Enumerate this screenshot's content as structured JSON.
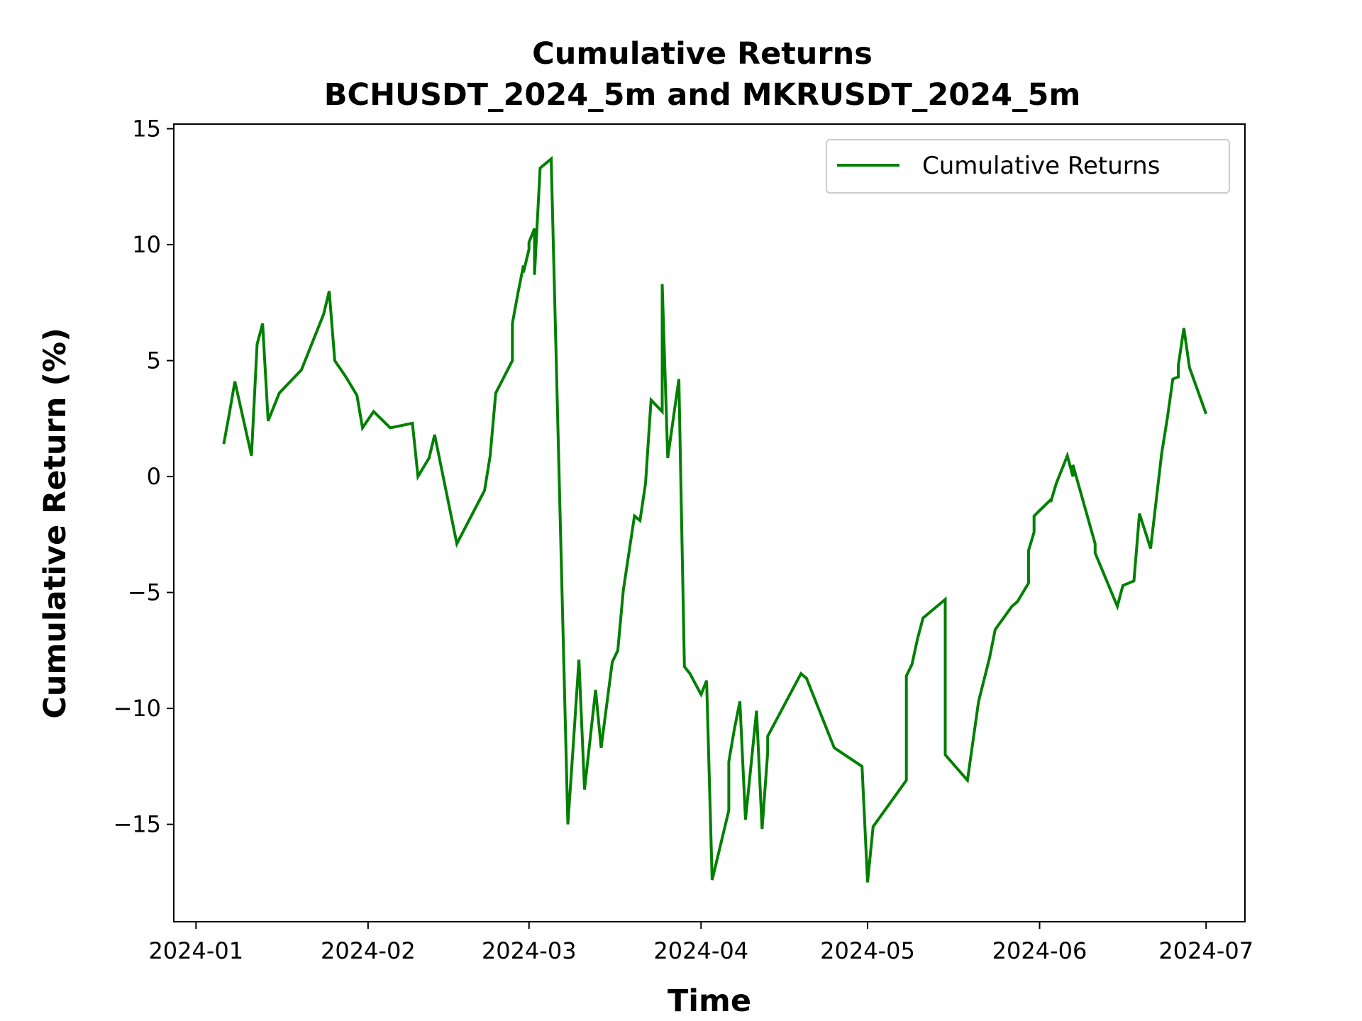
{
  "chart_data": {
    "type": "line",
    "title": "Cumulative Returns",
    "subtitle": "BCHUSDT_2024_5m and MKRUSDT_2024_5m",
    "xlabel": "Time",
    "ylabel": "Cumulative Return (%)",
    "ylim": [
      -19.2,
      15.2
    ],
    "xlim": [
      "2023-12-28",
      "2024-07-08"
    ],
    "x_ticks": [
      "2024-01-01",
      "2024-02-01",
      "2024-03-01",
      "2024-04-01",
      "2024-05-01",
      "2024-06-01",
      "2024-07-01"
    ],
    "x_tick_labels": [
      "2024-01",
      "2024-02",
      "2024-03",
      "2024-04",
      "2024-05",
      "2024-06",
      "2024-07"
    ],
    "y_ticks": [
      15,
      10,
      5,
      0,
      -5,
      -10,
      -15
    ],
    "y_tick_labels": [
      "15",
      "10",
      "5",
      "0",
      "−5",
      "−10",
      "−15"
    ],
    "grid": false,
    "legend_position": "top-right",
    "series": [
      {
        "name": "Cumulative Returns",
        "color": "#008000",
        "x": [
          "2024-01-06",
          "2024-01-07",
          "2024-01-08",
          "2024-01-11",
          "2024-01-12",
          "2024-01-13",
          "2024-01-14",
          "2024-01-16",
          "2024-01-20",
          "2024-01-24",
          "2024-01-25",
          "2024-01-26",
          "2024-01-28",
          "2024-01-30",
          "2024-01-31",
          "2024-02-02",
          "2024-02-05",
          "2024-02-09",
          "2024-02-10",
          "2024-02-12",
          "2024-02-13",
          "2024-02-17",
          "2024-02-22",
          "2024-02-23",
          "2024-02-24",
          "2024-02-27",
          "2024-02-27",
          "2024-02-28",
          "2024-02-29",
          "2024-02-29",
          "2024-03-01",
          "2024-03-01",
          "2024-03-02",
          "2024-03-02",
          "2024-03-03",
          "2024-03-05",
          "2024-03-08",
          "2024-03-09",
          "2024-03-10",
          "2024-03-11",
          "2024-03-13",
          "2024-03-14",
          "2024-03-16",
          "2024-03-17",
          "2024-03-18",
          "2024-03-20",
          "2024-03-21",
          "2024-03-22",
          "2024-03-23",
          "2024-03-25",
          "2024-03-25",
          "2024-03-26",
          "2024-03-28",
          "2024-03-29",
          "2024-03-30",
          "2024-04-01",
          "2024-04-02",
          "2024-04-03",
          "2024-04-06",
          "2024-04-06",
          "2024-04-07",
          "2024-04-08",
          "2024-04-09",
          "2024-04-11",
          "2024-04-12",
          "2024-04-13",
          "2024-04-13",
          "2024-04-19",
          "2024-04-20",
          "2024-04-25",
          "2024-04-30",
          "2024-05-01",
          "2024-05-02",
          "2024-05-08",
          "2024-05-08",
          "2024-05-09",
          "2024-05-10",
          "2024-05-11",
          "2024-05-15",
          "2024-05-15",
          "2024-05-19",
          "2024-05-21",
          "2024-05-23",
          "2024-05-24",
          "2024-05-27",
          "2024-05-28",
          "2024-05-30",
          "2024-05-30",
          "2024-05-31",
          "2024-05-31",
          "2024-06-03",
          "2024-06-03",
          "2024-06-04",
          "2024-06-06",
          "2024-06-07",
          "2024-06-07",
          "2024-06-11",
          "2024-06-11",
          "2024-06-15",
          "2024-06-16",
          "2024-06-18",
          "2024-06-19",
          "2024-06-21",
          "2024-06-23",
          "2024-06-24",
          "2024-06-25",
          "2024-06-26",
          "2024-06-26",
          "2024-06-27",
          "2024-06-28",
          "2024-07-01"
        ],
        "y": [
          1.4,
          2.7,
          4.1,
          0.9,
          5.7,
          6.6,
          2.4,
          3.6,
          4.6,
          7.0,
          8.0,
          5.0,
          4.3,
          3.5,
          2.1,
          2.8,
          2.1,
          2.3,
          0.0,
          0.8,
          1.8,
          -2.9,
          -0.6,
          0.9,
          3.6,
          5.0,
          6.6,
          7.9,
          9.1,
          8.8,
          9.8,
          10.1,
          10.7,
          8.7,
          13.3,
          13.7,
          -15.0,
          -11.5,
          -7.9,
          -13.5,
          -9.2,
          -11.7,
          -8.0,
          -7.5,
          -4.9,
          -1.7,
          -1.9,
          -0.3,
          3.3,
          2.8,
          8.3,
          0.8,
          4.2,
          -8.2,
          -8.5,
          -9.4,
          -8.8,
          -17.4,
          -14.4,
          -12.3,
          -10.9,
          -9.7,
          -14.8,
          -10.1,
          -15.2,
          -11.9,
          -11.2,
          -8.5,
          -8.7,
          -11.7,
          -12.5,
          -17.5,
          -15.1,
          -13.1,
          -8.6,
          -8.1,
          -7.0,
          -6.1,
          -5.3,
          -12.0,
          -13.1,
          -9.7,
          -7.8,
          -6.6,
          -5.6,
          -5.4,
          -4.6,
          -3.2,
          -2.4,
          -1.7,
          -1.0,
          -1.1,
          -0.3,
          0.9,
          0.0,
          0.5,
          -2.9,
          -3.3,
          -5.6,
          -4.7,
          -4.5,
          -1.6,
          -3.1,
          1.0,
          2.5,
          4.2,
          4.3,
          4.8,
          6.4,
          4.7,
          2.7
        ]
      }
    ]
  }
}
